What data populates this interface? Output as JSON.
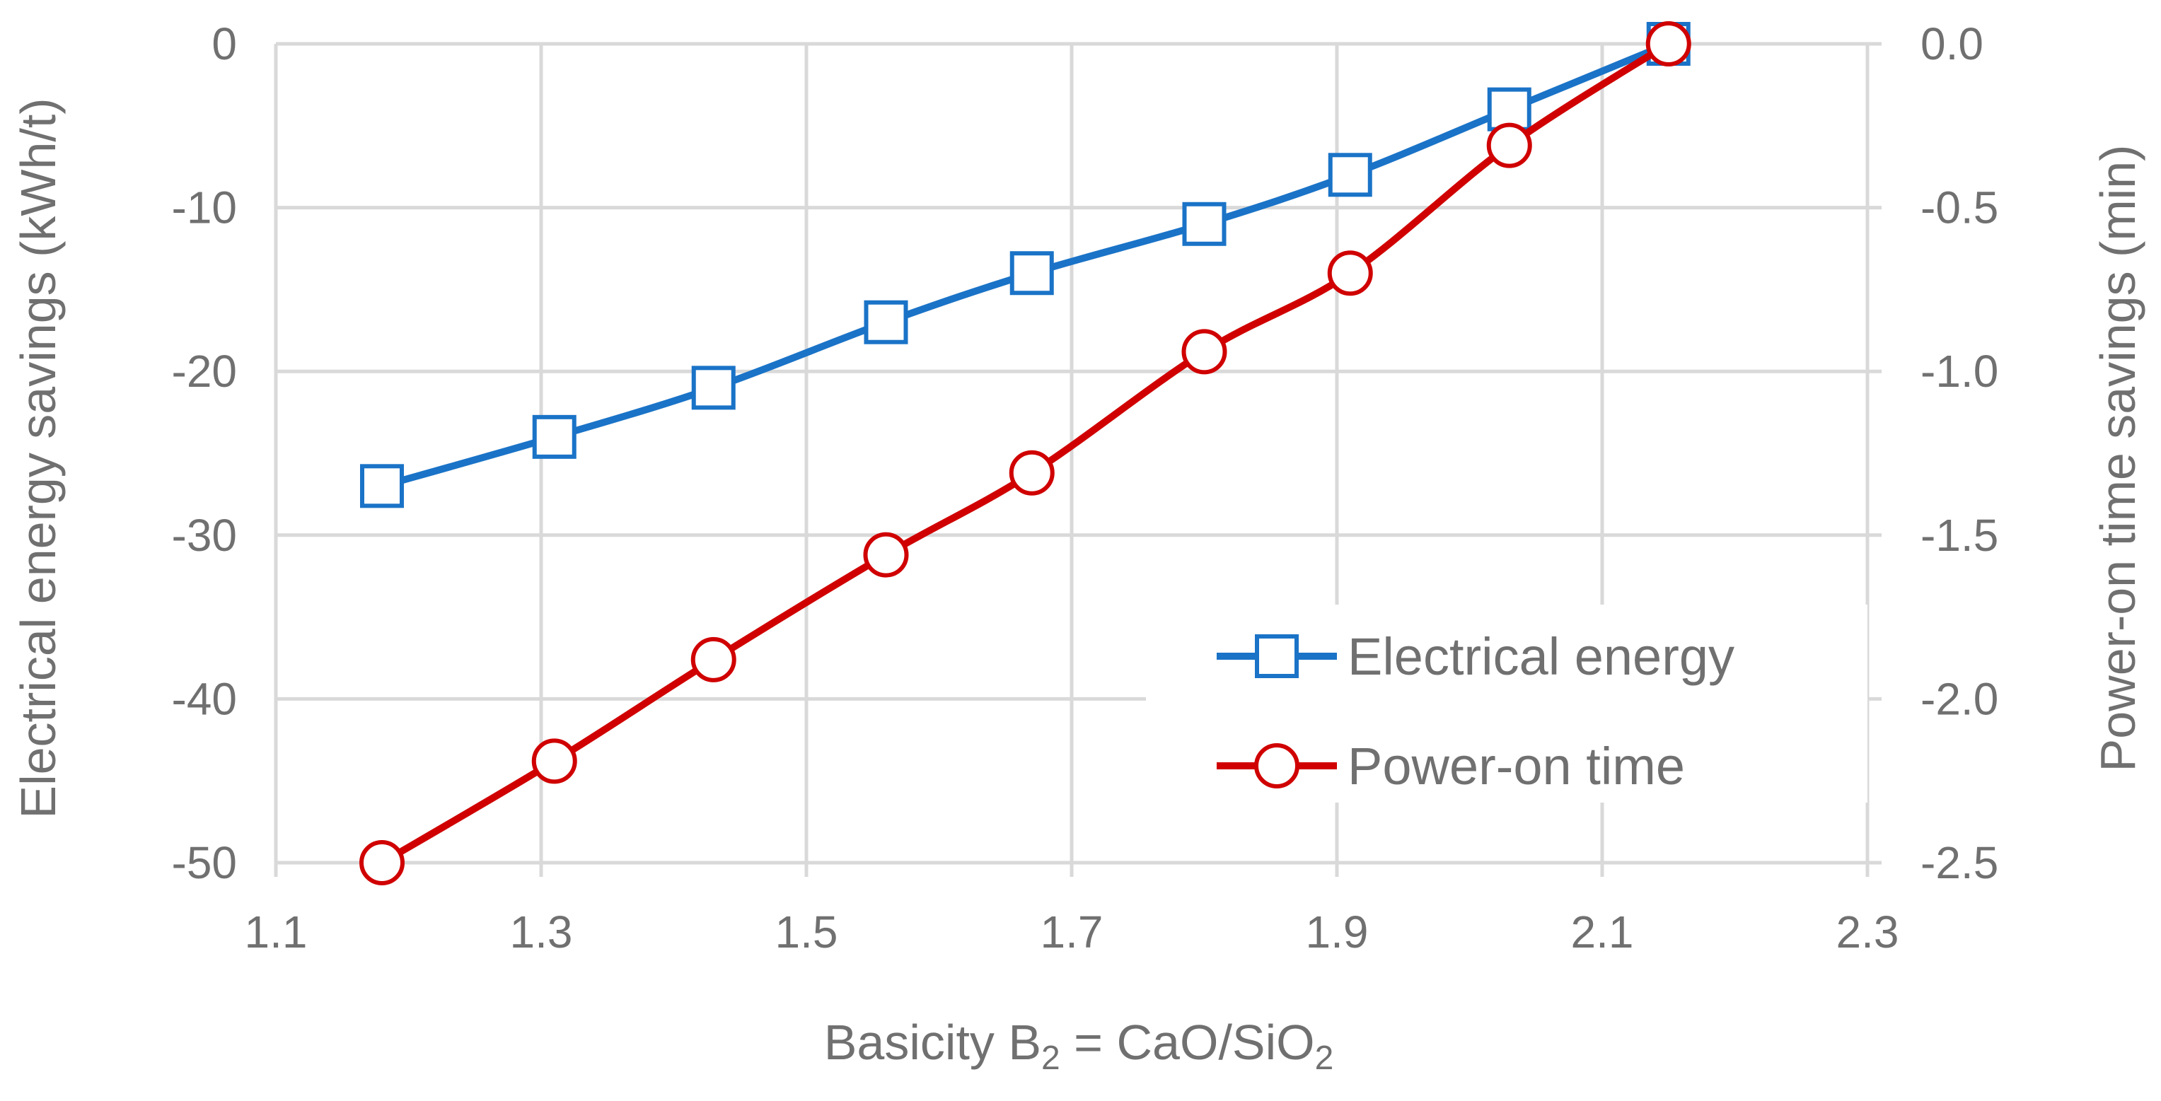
{
  "chart_data": {
    "type": "line",
    "x": [
      1.18,
      1.31,
      1.43,
      1.56,
      1.67,
      1.8,
      1.91,
      2.03,
      2.15
    ],
    "series": [
      {
        "name": "Electrical energy",
        "axis": "left",
        "color": "#1a73c7",
        "marker": "square",
        "values": [
          -27,
          -24,
          -21,
          -17,
          -14,
          -11,
          -8,
          -4,
          0
        ]
      },
      {
        "name": "Power-on time",
        "axis": "right",
        "color": "#d00000",
        "marker": "circle",
        "values": [
          -2.5,
          -2.19,
          -1.88,
          -1.56,
          -1.31,
          -0.94,
          -0.7,
          -0.31,
          0.0
        ]
      }
    ],
    "xlim": [
      1.1,
      2.3
    ],
    "ylim_left": [
      -50,
      0
    ],
    "ylim_right": [
      -2.5,
      0.0
    ],
    "xticks": [
      "1.1",
      "1.3",
      "1.5",
      "1.7",
      "1.9",
      "2.1",
      "2.3"
    ],
    "yticks_left": [
      "0",
      "-10",
      "-20",
      "-30",
      "-40",
      "-50"
    ],
    "yticks_right": [
      "0.0",
      "-0.5",
      "-1.0",
      "-1.5",
      "-2.0",
      "-2.5"
    ],
    "xlabel": {
      "prefix": "Basicity B",
      "sub1": "2",
      "middle": " = CaO/SiO",
      "sub2": "2"
    },
    "ylabel_left": "Electrical energy savings (kWh/t)",
    "ylabel_right": "Power-on time savings (min)",
    "legend_position": "lower-right",
    "grid": true
  }
}
